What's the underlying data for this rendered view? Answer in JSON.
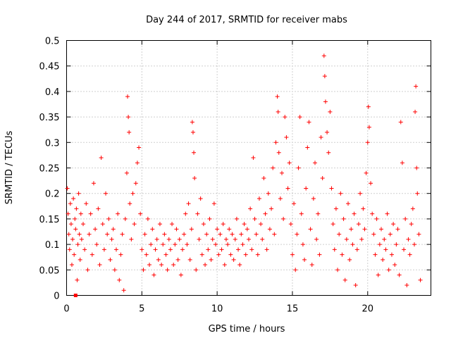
{
  "chart_data": {
    "type": "scatter",
    "title": "Day 244 of 2017, SRMTID for receiver mabs",
    "xlabel": "GPS time / hours",
    "ylabel": "SRMTID / TECUs",
    "xlim": [
      0,
      24.2
    ],
    "ylim": [
      0,
      0.5
    ],
    "x_ticks": [
      0,
      5,
      10,
      15,
      20
    ],
    "x_tick_labels": [
      "0",
      "5",
      "10",
      "15",
      "20"
    ],
    "y_ticks": [
      0,
      0.05,
      0.1,
      0.15,
      0.2,
      0.25,
      0.3,
      0.35,
      0.4,
      0.45,
      0.5
    ],
    "y_tick_labels": [
      "0",
      "0.05",
      "0.1",
      "0.15",
      "0.2",
      "0.25",
      "0.3",
      "0.35",
      "0.4",
      "0.45",
      "0.5"
    ],
    "grid": true,
    "series": [
      {
        "name": "SRMTID",
        "color": "#ff0000",
        "marker": "plus",
        "points": [
          [
            0.05,
            0.21
          ],
          [
            0.1,
            0.16
          ],
          [
            0.15,
            0.12
          ],
          [
            0.2,
            0.09
          ],
          [
            0.25,
            0.18
          ],
          [
            0.3,
            0.14
          ],
          [
            0.35,
            0.06
          ],
          [
            0.4,
            0.11
          ],
          [
            0.45,
            0.19
          ],
          [
            0.5,
            0.08
          ],
          [
            0.55,
            0.15
          ],
          [
            0.6,
            0.13
          ],
          [
            0.65,
            0.17
          ],
          [
            0.7,
            0.03
          ],
          [
            0.75,
            0.1
          ],
          [
            0.8,
            0.2
          ],
          [
            0.85,
            0.12
          ],
          [
            0.9,
            0.07
          ],
          [
            0.95,
            0.16
          ],
          [
            1.0,
            0.11
          ],
          [
            1.1,
            0.14
          ],
          [
            1.2,
            0.09
          ],
          [
            1.3,
            0.18
          ],
          [
            1.4,
            0.05
          ],
          [
            1.5,
            0.12
          ],
          [
            1.6,
            0.16
          ],
          [
            1.7,
            0.08
          ],
          [
            1.8,
            0.22
          ],
          [
            1.9,
            0.13
          ],
          [
            2.0,
            0.1
          ],
          [
            2.1,
            0.17
          ],
          [
            2.2,
            0.06
          ],
          [
            2.3,
            0.27
          ],
          [
            2.4,
            0.14
          ],
          [
            2.5,
            0.09
          ],
          [
            2.6,
            0.2
          ],
          [
            2.7,
            0.12
          ],
          [
            2.8,
            0.15
          ],
          [
            2.9,
            0.07
          ],
          [
            3.0,
            0.11
          ],
          [
            3.1,
            0.13
          ],
          [
            3.2,
            0.05
          ],
          [
            3.3,
            0.09
          ],
          [
            3.4,
            0.16
          ],
          [
            3.5,
            0.03
          ],
          [
            3.6,
            0.08
          ],
          [
            3.7,
            0.12
          ],
          [
            3.8,
            0.01
          ],
          [
            3.9,
            0.15
          ],
          [
            4.0,
            0.24
          ],
          [
            4.05,
            0.39
          ],
          [
            4.1,
            0.35
          ],
          [
            4.15,
            0.32
          ],
          [
            4.2,
            0.18
          ],
          [
            4.3,
            0.11
          ],
          [
            4.4,
            0.2
          ],
          [
            4.5,
            0.14
          ],
          [
            4.6,
            0.22
          ],
          [
            4.7,
            0.26
          ],
          [
            4.8,
            0.29
          ],
          [
            4.9,
            0.16
          ],
          [
            5.0,
            0.09
          ],
          [
            5.1,
            0.05
          ],
          [
            5.2,
            0.12
          ],
          [
            5.3,
            0.08
          ],
          [
            5.4,
            0.15
          ],
          [
            5.5,
            0.06
          ],
          [
            5.6,
            0.1
          ],
          [
            5.7,
            0.13
          ],
          [
            5.8,
            0.04
          ],
          [
            5.9,
            0.09
          ],
          [
            6.0,
            0.11
          ],
          [
            6.1,
            0.07
          ],
          [
            6.2,
            0.14
          ],
          [
            6.3,
            0.06
          ],
          [
            6.4,
            0.1
          ],
          [
            6.5,
            0.12
          ],
          [
            6.6,
            0.08
          ],
          [
            6.7,
            0.05
          ],
          [
            6.8,
            0.11
          ],
          [
            6.9,
            0.09
          ],
          [
            7.0,
            0.14
          ],
          [
            7.1,
            0.06
          ],
          [
            7.2,
            0.1
          ],
          [
            7.3,
            0.13
          ],
          [
            7.4,
            0.07
          ],
          [
            7.5,
            0.11
          ],
          [
            7.6,
            0.04
          ],
          [
            7.7,
            0.09
          ],
          [
            7.8,
            0.12
          ],
          [
            7.9,
            0.16
          ],
          [
            8.0,
            0.1
          ],
          [
            8.1,
            0.18
          ],
          [
            8.2,
            0.07
          ],
          [
            8.3,
            0.13
          ],
          [
            8.35,
            0.34
          ],
          [
            8.4,
            0.32
          ],
          [
            8.45,
            0.28
          ],
          [
            8.5,
            0.23
          ],
          [
            8.6,
            0.05
          ],
          [
            8.7,
            0.16
          ],
          [
            8.8,
            0.11
          ],
          [
            8.9,
            0.19
          ],
          [
            9.0,
            0.08
          ],
          [
            9.1,
            0.14
          ],
          [
            9.2,
            0.06
          ],
          [
            9.3,
            0.12
          ],
          [
            9.4,
            0.09
          ],
          [
            9.5,
            0.15
          ],
          [
            9.6,
            0.07
          ],
          [
            9.7,
            0.11
          ],
          [
            9.8,
            0.18
          ],
          [
            9.9,
            0.1
          ],
          [
            10.0,
            0.13
          ],
          [
            10.1,
            0.08
          ],
          [
            10.2,
            0.12
          ],
          [
            10.3,
            0.09
          ],
          [
            10.4,
            0.14
          ],
          [
            10.5,
            0.06
          ],
          [
            10.6,
            0.11
          ],
          [
            10.7,
            0.1
          ],
          [
            10.8,
            0.13
          ],
          [
            10.9,
            0.08
          ],
          [
            11.0,
            0.12
          ],
          [
            11.1,
            0.07
          ],
          [
            11.2,
            0.11
          ],
          [
            11.3,
            0.15
          ],
          [
            11.4,
            0.09
          ],
          [
            11.5,
            0.06
          ],
          [
            11.6,
            0.12
          ],
          [
            11.7,
            0.1
          ],
          [
            11.8,
            0.14
          ],
          [
            11.9,
            0.08
          ],
          [
            12.0,
            0.13
          ],
          [
            12.1,
            0.11
          ],
          [
            12.2,
            0.17
          ],
          [
            12.3,
            0.09
          ],
          [
            12.4,
            0.27
          ],
          [
            12.5,
            0.15
          ],
          [
            12.6,
            0.12
          ],
          [
            12.7,
            0.08
          ],
          [
            12.8,
            0.19
          ],
          [
            12.9,
            0.14
          ],
          [
            13.0,
            0.11
          ],
          [
            13.1,
            0.23
          ],
          [
            13.2,
            0.16
          ],
          [
            13.3,
            0.09
          ],
          [
            13.4,
            0.2
          ],
          [
            13.5,
            0.13
          ],
          [
            13.6,
            0.17
          ],
          [
            13.7,
            0.25
          ],
          [
            13.8,
            0.12
          ],
          [
            13.9,
            0.3
          ],
          [
            14.0,
            0.39
          ],
          [
            14.05,
            0.36
          ],
          [
            14.1,
            0.28
          ],
          [
            14.2,
            0.19
          ],
          [
            14.3,
            0.24
          ],
          [
            14.4,
            0.15
          ],
          [
            14.5,
            0.35
          ],
          [
            14.6,
            0.31
          ],
          [
            14.7,
            0.21
          ],
          [
            14.8,
            0.26
          ],
          [
            14.9,
            0.14
          ],
          [
            15.0,
            0.08
          ],
          [
            15.1,
            0.18
          ],
          [
            15.2,
            0.05
          ],
          [
            15.3,
            0.12
          ],
          [
            15.4,
            0.25
          ],
          [
            15.5,
            0.35
          ],
          [
            15.6,
            0.16
          ],
          [
            15.7,
            0.1
          ],
          [
            15.8,
            0.07
          ],
          [
            15.9,
            0.21
          ],
          [
            16.0,
            0.29
          ],
          [
            16.1,
            0.34
          ],
          [
            16.2,
            0.13
          ],
          [
            16.3,
            0.06
          ],
          [
            16.4,
            0.19
          ],
          [
            16.5,
            0.26
          ],
          [
            16.6,
            0.11
          ],
          [
            16.7,
            0.16
          ],
          [
            16.8,
            0.08
          ],
          [
            16.9,
            0.31
          ],
          [
            17.0,
            0.23
          ],
          [
            17.1,
            0.47
          ],
          [
            17.15,
            0.43
          ],
          [
            17.2,
            0.38
          ],
          [
            17.3,
            0.32
          ],
          [
            17.4,
            0.28
          ],
          [
            17.5,
            0.36
          ],
          [
            17.6,
            0.21
          ],
          [
            17.7,
            0.14
          ],
          [
            17.8,
            0.09
          ],
          [
            17.9,
            0.17
          ],
          [
            18.0,
            0.05
          ],
          [
            18.1,
            0.12
          ],
          [
            18.2,
            0.2
          ],
          [
            18.3,
            0.08
          ],
          [
            18.4,
            0.15
          ],
          [
            18.5,
            0.03
          ],
          [
            18.6,
            0.11
          ],
          [
            18.7,
            0.18
          ],
          [
            18.8,
            0.07
          ],
          [
            18.9,
            0.13
          ],
          [
            19.0,
            0.1
          ],
          [
            19.1,
            0.16
          ],
          [
            19.2,
            0.02
          ],
          [
            19.3,
            0.09
          ],
          [
            19.4,
            0.14
          ],
          [
            19.5,
            0.2
          ],
          [
            19.6,
            0.11
          ],
          [
            19.7,
            0.17
          ],
          [
            19.8,
            0.13
          ],
          [
            19.9,
            0.24
          ],
          [
            20.0,
            0.3
          ],
          [
            20.05,
            0.37
          ],
          [
            20.1,
            0.33
          ],
          [
            20.2,
            0.22
          ],
          [
            20.3,
            0.16
          ],
          [
            20.4,
            0.12
          ],
          [
            20.5,
            0.08
          ],
          [
            20.6,
            0.15
          ],
          [
            20.7,
            0.04
          ],
          [
            20.8,
            0.1
          ],
          [
            20.9,
            0.13
          ],
          [
            21.0,
            0.07
          ],
          [
            21.1,
            0.11
          ],
          [
            21.2,
            0.09
          ],
          [
            21.3,
            0.16
          ],
          [
            21.4,
            0.05
          ],
          [
            21.5,
            0.12
          ],
          [
            21.6,
            0.08
          ],
          [
            21.7,
            0.14
          ],
          [
            21.8,
            0.06
          ],
          [
            21.9,
            0.1
          ],
          [
            22.0,
            0.13
          ],
          [
            22.1,
            0.04
          ],
          [
            22.2,
            0.34
          ],
          [
            22.3,
            0.26
          ],
          [
            22.4,
            0.09
          ],
          [
            22.5,
            0.15
          ],
          [
            22.6,
            0.02
          ],
          [
            22.7,
            0.11
          ],
          [
            22.8,
            0.08
          ],
          [
            22.9,
            0.14
          ],
          [
            23.0,
            0.17
          ],
          [
            23.1,
            0.1
          ],
          [
            23.15,
            0.36
          ],
          [
            23.2,
            0.41
          ],
          [
            23.25,
            0.25
          ],
          [
            23.3,
            0.2
          ],
          [
            23.4,
            0.12
          ],
          [
            23.5,
            0.03
          ]
        ]
      }
    ],
    "marker_square": [
      0.6,
      0.0
    ]
  }
}
